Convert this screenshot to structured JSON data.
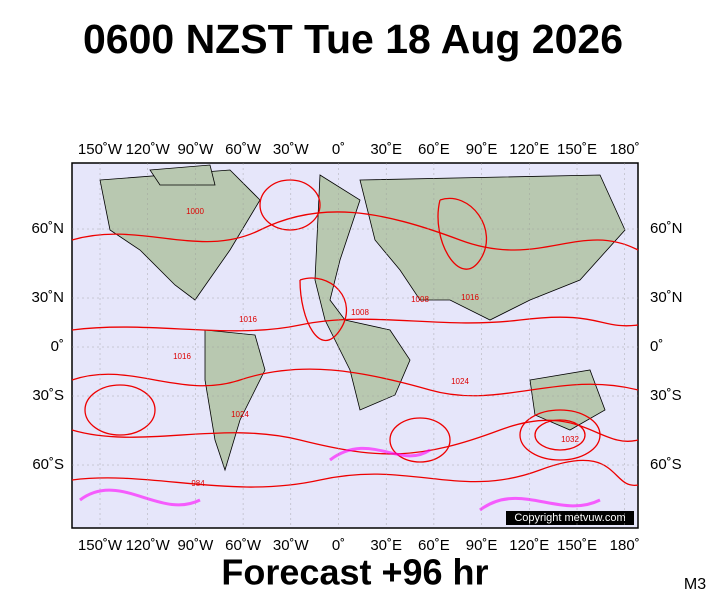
{
  "title": "0600 NZST Tue 18 Aug 2026",
  "footer": "Forecast +96 hr",
  "model": "M3",
  "copyright": "Copyright metvuw.com",
  "lon_labels": [
    "150˚W",
    "120˚W",
    "90˚W",
    "60˚W",
    "30˚W",
    "0˚",
    "30˚E",
    "60˚E",
    "90˚E",
    "120˚E",
    "150˚E",
    "180˚"
  ],
  "lat_labels": [
    "60˚N",
    "30˚N",
    "0˚",
    "30˚S",
    "60˚S"
  ],
  "isobar_labels": [
    "1016",
    "1008",
    "1000",
    "1024",
    "1016",
    "1032",
    "984",
    "1008",
    "1016",
    "1024"
  ]
}
